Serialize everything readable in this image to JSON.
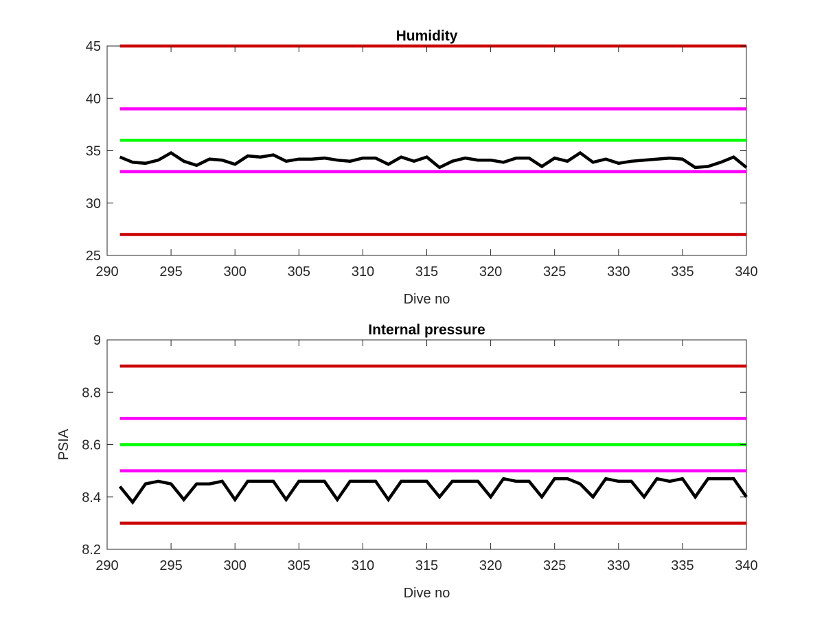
{
  "colors": {
    "red_limit": "#cc0000",
    "magenta_limit": "#ff00ff",
    "green_target": "#00ff00",
    "data_line": "#000000"
  },
  "chart_data": [
    {
      "type": "line",
      "title": "Humidity",
      "xlabel": "Dive no",
      "ylabel": "",
      "xlim": [
        290,
        340
      ],
      "ylim": [
        25,
        45
      ],
      "xticks": [
        "290",
        "295",
        "300",
        "305",
        "310",
        "315",
        "320",
        "325",
        "330",
        "335",
        "340"
      ],
      "yticks": [
        "25",
        "30",
        "35",
        "40",
        "45"
      ],
      "grid": false,
      "reference_lines": [
        {
          "y": 45,
          "color": "red_limit",
          "x": [
            291,
            340
          ]
        },
        {
          "y": 39,
          "color": "magenta_limit",
          "x": [
            291,
            340
          ]
        },
        {
          "y": 36,
          "color": "green_target",
          "x": [
            291,
            340
          ]
        },
        {
          "y": 33,
          "color": "magenta_limit",
          "x": [
            291,
            340
          ]
        },
        {
          "y": 27,
          "color": "red_limit",
          "x": [
            291,
            340
          ]
        }
      ],
      "series": [
        {
          "color": "data_line",
          "x": [
            291,
            292,
            293,
            294,
            295,
            296,
            297,
            298,
            299,
            300,
            301,
            302,
            303,
            304,
            305,
            306,
            307,
            308,
            309,
            310,
            311,
            312,
            313,
            314,
            315,
            316,
            317,
            318,
            319,
            320,
            321,
            322,
            323,
            324,
            325,
            326,
            327,
            328,
            329,
            330,
            331,
            332,
            333,
            334,
            335,
            336,
            337,
            338,
            339,
            340
          ],
          "y": [
            34.4,
            33.9,
            33.8,
            34.1,
            34.8,
            34.0,
            33.6,
            34.2,
            34.1,
            33.7,
            34.5,
            34.4,
            34.6,
            34.0,
            34.2,
            34.2,
            34.3,
            34.1,
            34.0,
            34.3,
            34.3,
            33.7,
            34.4,
            34.0,
            34.4,
            33.4,
            34.0,
            34.3,
            34.1,
            34.1,
            33.9,
            34.3,
            34.3,
            33.5,
            34.3,
            34.0,
            34.8,
            33.9,
            34.2,
            33.8,
            34.0,
            34.1,
            34.2,
            34.3,
            34.2,
            33.4,
            33.5,
            33.9,
            34.4,
            33.4
          ]
        }
      ]
    },
    {
      "type": "line",
      "title": "Internal pressure",
      "xlabel": "Dive no",
      "ylabel": "PSIA",
      "xlim": [
        290,
        340
      ],
      "ylim": [
        8.2,
        9
      ],
      "xticks": [
        "290",
        "295",
        "300",
        "305",
        "310",
        "315",
        "320",
        "325",
        "330",
        "335",
        "340"
      ],
      "yticks": [
        "8.2",
        "8.4",
        "8.6",
        "8.8",
        "9"
      ],
      "grid": false,
      "reference_lines": [
        {
          "y": 8.9,
          "color": "red_limit",
          "x": [
            291,
            340
          ]
        },
        {
          "y": 8.7,
          "color": "magenta_limit",
          "x": [
            291,
            340
          ]
        },
        {
          "y": 8.6,
          "color": "green_target",
          "x": [
            291,
            340
          ]
        },
        {
          "y": 8.5,
          "color": "magenta_limit",
          "x": [
            291,
            340
          ]
        },
        {
          "y": 8.3,
          "color": "red_limit",
          "x": [
            291,
            340
          ]
        }
      ],
      "series": [
        {
          "color": "data_line",
          "x": [
            291,
            292,
            293,
            294,
            295,
            296,
            297,
            298,
            299,
            300,
            301,
            302,
            303,
            304,
            305,
            306,
            307,
            308,
            309,
            310,
            311,
            312,
            313,
            314,
            315,
            316,
            317,
            318,
            319,
            320,
            321,
            322,
            323,
            324,
            325,
            326,
            327,
            328,
            329,
            330,
            331,
            332,
            333,
            334,
            335,
            336,
            337,
            338,
            339,
            340
          ],
          "y": [
            8.44,
            8.38,
            8.45,
            8.46,
            8.45,
            8.39,
            8.45,
            8.45,
            8.46,
            8.39,
            8.46,
            8.46,
            8.46,
            8.39,
            8.46,
            8.46,
            8.46,
            8.39,
            8.46,
            8.46,
            8.46,
            8.39,
            8.46,
            8.46,
            8.46,
            8.4,
            8.46,
            8.46,
            8.46,
            8.4,
            8.47,
            8.46,
            8.46,
            8.4,
            8.47,
            8.47,
            8.45,
            8.4,
            8.47,
            8.46,
            8.46,
            8.4,
            8.47,
            8.46,
            8.47,
            8.4,
            8.47,
            8.47,
            8.47,
            8.4
          ]
        }
      ]
    }
  ]
}
